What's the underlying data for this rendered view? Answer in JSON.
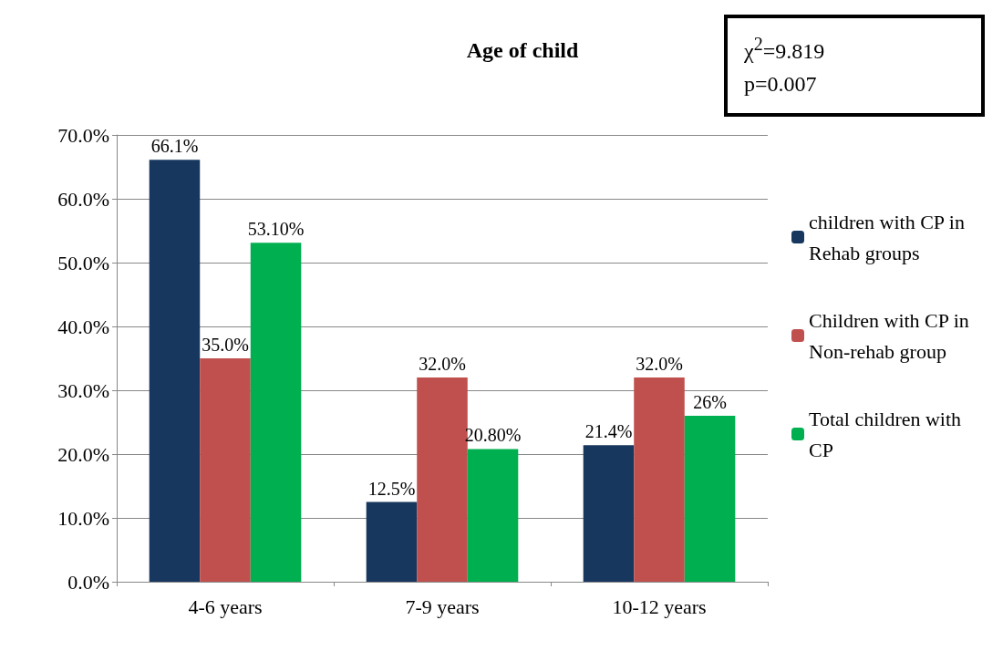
{
  "chart_data": {
    "type": "bar",
    "title": "Age of child",
    "categories": [
      "4-6 years",
      "7-9 years",
      "10-12 years"
    ],
    "series": [
      {
        "name": "children with CP in Rehab groups",
        "color": "#17375e",
        "values": [
          66.1,
          12.5,
          21.4
        ],
        "value_labels": [
          "66.1%",
          "12.5%",
          "21.4%"
        ]
      },
      {
        "name": "Children with CP in Non-rehab group",
        "color": "#c0504d",
        "values": [
          35.0,
          32.0,
          32.0
        ],
        "value_labels": [
          "35.0%",
          "32.0%",
          "32.0%"
        ]
      },
      {
        "name": "Total children with CP",
        "color": "#00b050",
        "values": [
          53.1,
          20.8,
          26
        ],
        "value_labels": [
          "53.10%",
          "20.80%",
          "26%"
        ]
      }
    ],
    "ylim": [
      0,
      70
    ],
    "yticks": [
      {
        "value": 0,
        "label": "0.0%"
      },
      {
        "value": 10,
        "label": "10.0%"
      },
      {
        "value": 20,
        "label": "20.0%"
      },
      {
        "value": 30,
        "label": "30.0%"
      },
      {
        "value": 40,
        "label": "40.0%"
      },
      {
        "value": 50,
        "label": "50.0%"
      },
      {
        "value": 60,
        "label": "60.0%"
      },
      {
        "value": 70,
        "label": "70.0%"
      }
    ],
    "grid": "y",
    "legend": "right",
    "annotations": [
      "χ$^{2}$=9.819",
      "p=0.007"
    ]
  }
}
